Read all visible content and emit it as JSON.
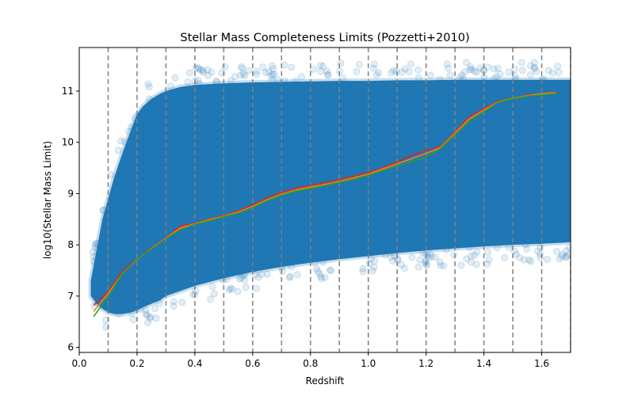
{
  "chart_data": {
    "type": "scatter",
    "title": "Stellar Mass Completeness Limits (Pozzetti+2010)",
    "xlabel": "Redshift",
    "ylabel": "log10(Stellar Mass Limit)",
    "xlim": [
      0.0,
      1.7
    ],
    "ylim": [
      5.9,
      11.85
    ],
    "xticks": [
      0.0,
      0.2,
      0.4,
      0.6,
      0.8,
      1.0,
      1.2,
      1.4,
      1.6
    ],
    "xtick_labels": [
      "0.0",
      "0.2",
      "0.4",
      "0.6",
      "0.8",
      "1.0",
      "1.2",
      "1.4",
      "1.6"
    ],
    "yticks": [
      6,
      7,
      8,
      9,
      10,
      11
    ],
    "ytick_labels": [
      "6",
      "7",
      "8",
      "9",
      "10",
      "11"
    ],
    "grid": false,
    "vertical_bin_edges": [
      0.1,
      0.2,
      0.3,
      0.4,
      0.5,
      0.6,
      0.7,
      0.8,
      0.9,
      1.0,
      1.1,
      1.2,
      1.3,
      1.4,
      1.5,
      1.6,
      1.7
    ],
    "scatter_color": "#1f77b4",
    "scatter_envelope": {
      "x": [
        0.04,
        0.06,
        0.08,
        0.1,
        0.12,
        0.15,
        0.18,
        0.2,
        0.22,
        0.25,
        0.28,
        0.3,
        0.35,
        0.4,
        0.5,
        0.6,
        0.7,
        0.8,
        0.9,
        1.0,
        1.1,
        1.2,
        1.3,
        1.4,
        1.5,
        1.6,
        1.7
      ],
      "upper": [
        7.3,
        7.9,
        8.5,
        8.9,
        9.3,
        9.8,
        10.25,
        10.55,
        10.7,
        10.85,
        10.95,
        11.0,
        11.08,
        11.12,
        11.15,
        11.17,
        11.18,
        11.19,
        11.2,
        11.2,
        11.21,
        11.21,
        11.22,
        11.22,
        11.22,
        11.22,
        11.22
      ],
      "lower": [
        7.0,
        6.85,
        6.75,
        6.68,
        6.65,
        6.65,
        6.68,
        6.72,
        6.78,
        6.85,
        6.92,
        7.0,
        7.1,
        7.2,
        7.35,
        7.47,
        7.57,
        7.65,
        7.72,
        7.78,
        7.84,
        7.89,
        7.93,
        7.97,
        8.0,
        8.02,
        8.05
      ]
    },
    "series": [
      {
        "color": "#d62728",
        "x": [
          0.05,
          0.1,
          0.15,
          0.2,
          0.25,
          0.3,
          0.35,
          0.4,
          0.45,
          0.5,
          0.55,
          0.6,
          0.65,
          0.7,
          0.75,
          0.8,
          0.85,
          0.9,
          0.95,
          1.0,
          1.05,
          1.1,
          1.15,
          1.2,
          1.25,
          1.3,
          1.35,
          1.4,
          1.45,
          1.5,
          1.55,
          1.6,
          1.65
        ],
        "y": [
          6.82,
          7.08,
          7.5,
          7.72,
          7.94,
          8.14,
          8.36,
          8.42,
          8.5,
          8.57,
          8.66,
          8.78,
          8.92,
          9.02,
          9.1,
          9.16,
          9.21,
          9.27,
          9.34,
          9.41,
          9.5,
          9.62,
          9.75,
          9.84,
          9.92,
          10.2,
          10.5,
          10.65,
          10.8,
          10.86,
          10.92,
          10.95,
          10.98
        ]
      },
      {
        "color": "#ff7f0e",
        "x": [
          0.05,
          0.1,
          0.15,
          0.2,
          0.25,
          0.3,
          0.35,
          0.4,
          0.45,
          0.5,
          0.55,
          0.6,
          0.65,
          0.7,
          0.75,
          0.8,
          0.85,
          0.9,
          0.95,
          1.0,
          1.05,
          1.1,
          1.15,
          1.2,
          1.25,
          1.3,
          1.35,
          1.4,
          1.45,
          1.5,
          1.55,
          1.6,
          1.65
        ],
        "y": [
          6.7,
          7.05,
          7.45,
          7.71,
          7.93,
          8.13,
          8.33,
          8.41,
          8.49,
          8.56,
          8.64,
          8.75,
          8.88,
          8.99,
          9.07,
          9.13,
          9.18,
          9.24,
          9.31,
          9.38,
          9.48,
          9.58,
          9.68,
          9.78,
          9.9,
          10.18,
          10.46,
          10.63,
          10.79,
          10.86,
          10.91,
          10.95,
          10.97
        ]
      },
      {
        "color": "#2ca02c",
        "x": [
          0.05,
          0.1,
          0.15,
          0.2,
          0.25,
          0.3,
          0.35,
          0.4,
          0.45,
          0.5,
          0.55,
          0.6,
          0.65,
          0.7,
          0.75,
          0.8,
          0.85,
          0.9,
          0.95,
          1.0,
          1.05,
          1.1,
          1.15,
          1.2,
          1.25,
          1.3,
          1.35,
          1.4,
          1.45,
          1.5,
          1.55,
          1.6,
          1.65
        ],
        "y": [
          6.6,
          7.0,
          7.45,
          7.72,
          7.92,
          8.12,
          8.3,
          8.4,
          8.47,
          8.55,
          8.62,
          8.73,
          8.86,
          8.97,
          9.05,
          9.1,
          9.16,
          9.22,
          9.28,
          9.36,
          9.45,
          9.54,
          9.62,
          9.72,
          9.88,
          10.15,
          10.42,
          10.6,
          10.78,
          10.85,
          10.9,
          10.93,
          10.95
        ]
      }
    ]
  }
}
